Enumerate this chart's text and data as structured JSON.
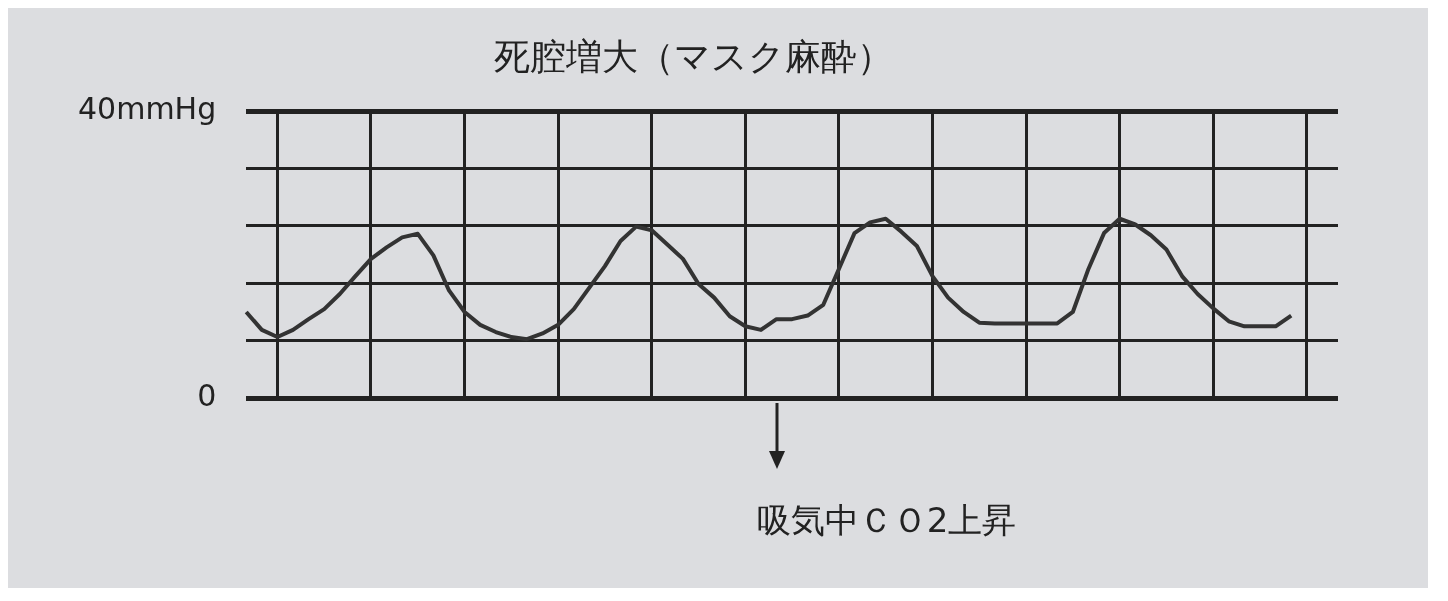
{
  "chart_data": {
    "type": "line",
    "title": "死腔増大（マスク麻酔）",
    "categories": [
      null,
      null,
      null,
      null,
      null,
      null,
      null,
      null,
      null,
      null,
      null,
      null,
      null,
      null,
      null,
      null,
      null,
      null,
      null,
      null,
      null,
      null,
      null,
      null,
      null,
      null,
      null,
      null,
      null,
      null,
      null,
      null,
      null,
      null,
      null,
      null,
      null,
      null,
      null,
      null,
      null,
      null,
      null,
      null,
      null,
      null,
      null,
      null,
      null,
      null,
      null,
      null,
      null,
      null,
      null,
      null,
      null,
      null,
      null,
      null,
      null,
      null,
      null,
      null,
      null,
      null,
      null,
      null,
      null,
      null,
      null
    ],
    "series": [
      {
        "color": "#333333",
        "values": [
          12,
          9.5,
          8.5,
          9.5,
          11,
          12.4,
          14.5,
          17,
          19.4,
          21,
          22.4,
          22.9,
          19.9,
          15,
          12,
          10.2,
          9.2,
          8.5,
          8.2,
          9,
          10.2,
          12.4,
          15.4,
          18.4,
          21.9,
          23.9,
          23.4,
          21.4,
          19.4,
          15.9,
          14,
          11.4,
          10,
          9.5,
          11,
          11,
          11.5,
          13,
          18,
          23,
          24.5,
          25,
          23.2,
          21.2,
          17,
          14,
          12,
          10.5,
          10.4,
          10.4,
          10.4,
          10.4,
          10.4,
          12,
          18,
          23,
          25,
          24.2,
          22.7,
          20.7,
          17,
          14.5,
          12.5,
          10.7,
          10,
          10,
          10,
          11.5,
          null,
          null,
          null
        ]
      }
    ],
    "ylim": [
      0,
      40
    ],
    "yticks": [
      {
        "value": 0,
        "label": "0"
      },
      {
        "value": 8,
        "label": null
      },
      {
        "value": 16,
        "label": null
      },
      {
        "value": 24,
        "label": null
      },
      {
        "value": 32,
        "label": null
      },
      {
        "value": 40,
        "label": "40mmHg"
      }
    ],
    "grid": true,
    "tick_labels": "y",
    "marker": "none",
    "line_style": "solid",
    "annotations": [
      "吸気中ＣＯ2上昇"
    ]
  }
}
